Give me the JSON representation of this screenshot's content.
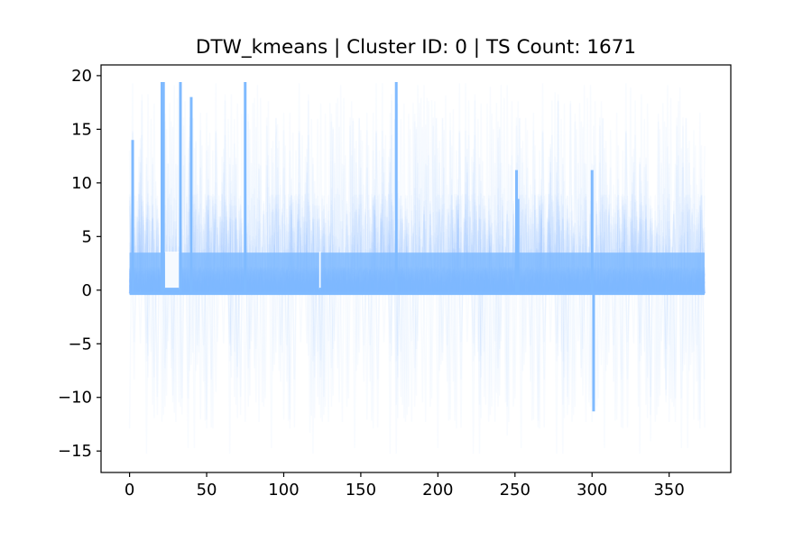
{
  "chart_data": {
    "type": "line",
    "title": "DTW_kmeans | Cluster ID: 0 | TS Count: 1671",
    "xlabel": "",
    "ylabel": "",
    "xlim": [
      -18.5,
      390
    ],
    "ylim": [
      -17,
      21
    ],
    "x_ticks": [
      0,
      50,
      100,
      150,
      200,
      250,
      300,
      350
    ],
    "y_ticks": [
      -15,
      -10,
      -5,
      0,
      5,
      10,
      15,
      20
    ],
    "x_tick_labels": [
      "0",
      "50",
      "100",
      "150",
      "200",
      "250",
      "300",
      "350"
    ],
    "y_tick_labels": [
      "−15",
      "−10",
      "−5",
      "0",
      "5",
      "10",
      "15",
      "20"
    ],
    "grid": false,
    "legend": "none",
    "series_color": "#7fbaff",
    "series_count": 1671,
    "x_range": [
      0,
      373
    ],
    "baseline_value": -0.3,
    "dense_band": [
      -0.3,
      3.5
    ],
    "upper_spike_max": 19.4,
    "lower_spike_min": -15.5,
    "emphasized_spikes": [
      {
        "x": 2,
        "y": 14.0
      },
      {
        "x": 21,
        "y": 19.4
      },
      {
        "x": 22,
        "y": 19.4
      },
      {
        "x": 33,
        "y": 19.4
      },
      {
        "x": 40,
        "y": 18.0
      },
      {
        "x": 75,
        "y": 19.4
      },
      {
        "x": 173,
        "y": 19.4
      },
      {
        "x": 251,
        "y": 11.2
      },
      {
        "x": 252,
        "y": 8.5
      },
      {
        "x": 300,
        "y": 11.2
      },
      {
        "x": 301,
        "y": -11.3
      }
    ],
    "flat_segments": [
      {
        "x_start": 23,
        "x_end": 32,
        "y": 0.1
      },
      {
        "x_start": 123,
        "x_end": 124,
        "y": 0.1
      }
    ]
  }
}
